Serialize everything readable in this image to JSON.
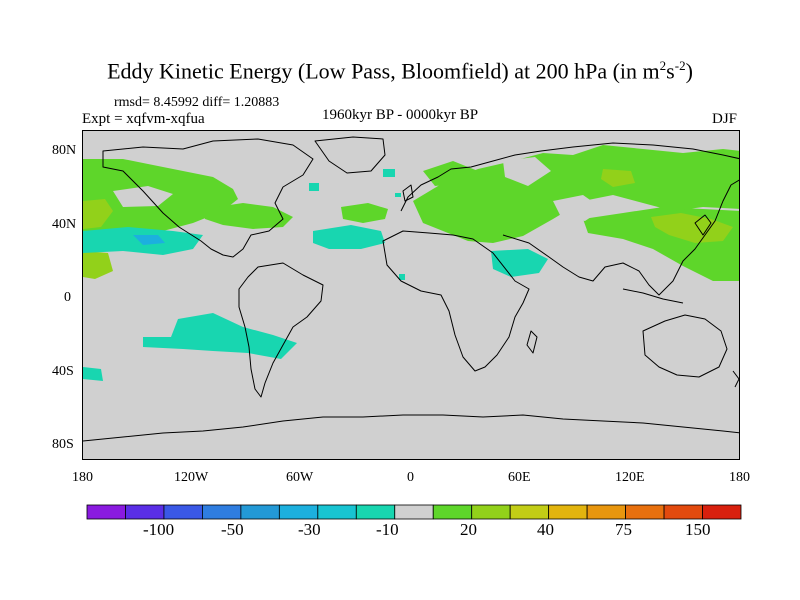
{
  "title": {
    "main": "Eddy Kinetic Energy (Low Pass, Bloomfield) at 200 hPa (in m",
    "exp1": "2",
    "mid": "s",
    "exp2": "-2",
    "close": ")"
  },
  "stats": "rmsd= 8.45992 diff= 1.20883",
  "expt": "Expt = xqfvm-xqfua",
  "period": "1960kyr BP - 0000kyr BP",
  "season": "DJF",
  "lat_labels": [
    "80N",
    "40N",
    "0",
    "40S",
    "80S"
  ],
  "lon_labels": [
    "180",
    "120W",
    "60W",
    "0",
    "60E",
    "120E",
    "180"
  ],
  "colorbar": {
    "colors": [
      "#8a1ae0",
      "#5a2ee6",
      "#3a58e6",
      "#2f7de0",
      "#2399d6",
      "#1cb0de",
      "#18c4d2",
      "#18d6b0",
      "#d0d0d0",
      "#5ed62a",
      "#92d11a",
      "#c2cd16",
      "#e2b40e",
      "#e8960e",
      "#e8700e",
      "#e24a0e",
      "#d8200e"
    ],
    "labels": [
      "-100",
      "-50",
      "-30",
      "-10",
      "20",
      "40",
      "75",
      "150"
    ]
  },
  "colors": {
    "land_bg": "#d0d0d0",
    "positive_green": "#5ed62a",
    "positive_yellowgreen": "#92d11a",
    "negative_cyan": "#18d6b0",
    "negative_blue": "#1cb0de"
  }
}
